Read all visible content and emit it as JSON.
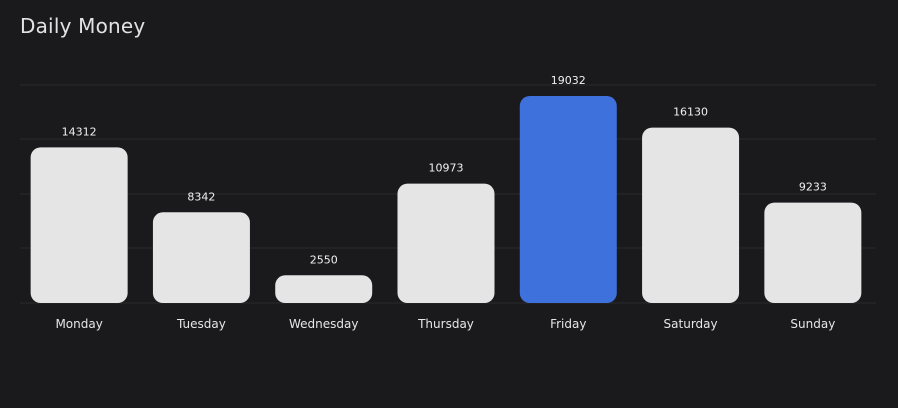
{
  "title": "Daily Money",
  "colors": {
    "background": "#1a1a1c",
    "bar_default": "#e5e5e5",
    "bar_highlight": "#3e71dc",
    "grid": "#2a2a2d"
  },
  "chart_data": {
    "type": "bar",
    "title": "Daily Money",
    "xlabel": "",
    "ylabel": "",
    "categories": [
      "Monday",
      "Tuesday",
      "Wednesday",
      "Thursday",
      "Friday",
      "Saturday",
      "Sunday"
    ],
    "values": [
      14312,
      8342,
      2550,
      10973,
      19032,
      16130,
      9233
    ],
    "highlight": "Friday",
    "ylim": [
      0,
      20000
    ],
    "grid": true,
    "legend": "none"
  }
}
